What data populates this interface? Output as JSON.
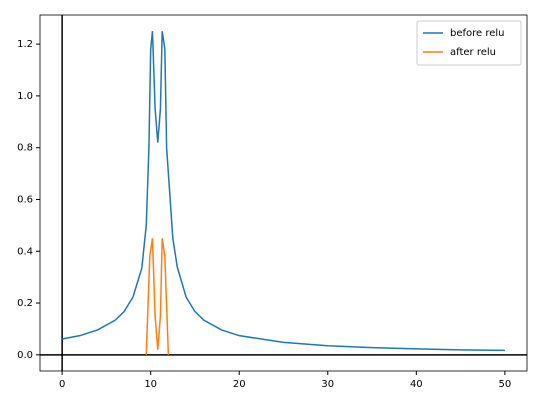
{
  "chart_data": {
    "type": "line",
    "series": [
      {
        "name": "before relu",
        "color": "#1f77b4",
        "x": [
          0,
          2,
          4,
          6,
          7,
          8,
          9,
          9.5,
          9.8,
          10,
          10.2,
          10.5,
          10.8,
          11.1,
          11.3,
          11.6,
          11.8,
          12.2,
          12.5,
          13,
          14,
          15,
          16,
          18,
          20,
          25,
          30,
          35,
          40,
          45,
          50
        ],
        "values": [
          0.061,
          0.074,
          0.096,
          0.134,
          0.167,
          0.223,
          0.335,
          0.5,
          0.8,
          1.18,
          1.25,
          0.95,
          0.82,
          0.95,
          1.25,
          1.18,
          0.8,
          0.6,
          0.45,
          0.34,
          0.223,
          0.167,
          0.134,
          0.096,
          0.074,
          0.048,
          0.035,
          0.028,
          0.023,
          0.019,
          0.017
        ]
      },
      {
        "name": "after relu",
        "color": "#ff7f0e",
        "x": [
          9.5,
          9.9,
          10.2,
          10.5,
          10.8,
          11.1,
          11.3,
          11.6,
          12
        ],
        "values": [
          0,
          0.38,
          0.45,
          0.15,
          0.02,
          0.15,
          0.45,
          0.38,
          0
        ]
      }
    ],
    "xlim": [
      -2.5,
      52.5
    ],
    "ylim": [
      -0.0625,
      1.3125
    ],
    "xticks": [
      0,
      10,
      20,
      30,
      40,
      50
    ],
    "yticks": [
      {
        "value": 0,
        "label": "0.0"
      },
      {
        "value": 0.2,
        "label": "0.2"
      },
      {
        "value": 0.4,
        "label": "0.4"
      },
      {
        "value": 0.6,
        "label": "0.6"
      },
      {
        "value": 0.8,
        "label": "0.8"
      },
      {
        "value": 1,
        "label": "1.0"
      },
      {
        "value": 1.2,
        "label": "1.2"
      }
    ],
    "axhline": 0,
    "axvline": 0,
    "legend": "upper right"
  }
}
